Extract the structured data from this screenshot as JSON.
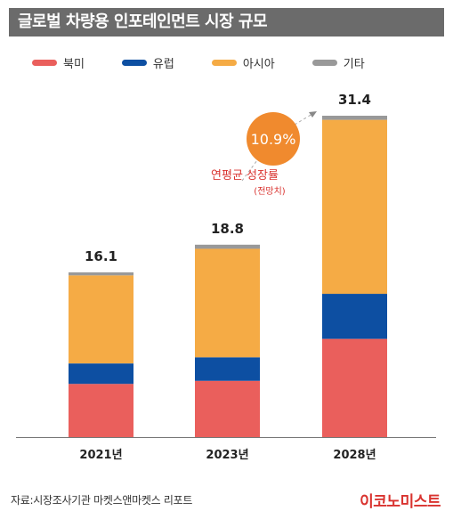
{
  "title": "글로벌 차량용 인포테인먼트 시장 규모",
  "legend": [
    {
      "label": "북미",
      "color": "#ea5f5c"
    },
    {
      "label": "유럽",
      "color": "#0d4fa2"
    },
    {
      "label": "아시아",
      "color": "#f5ab45"
    },
    {
      "label": "기타",
      "color": "#999999"
    }
  ],
  "chart_data": {
    "type": "bar",
    "stacked": true,
    "categories": [
      "2021년",
      "2023년",
      "2028년"
    ],
    "totals": [
      "16.1",
      "18.8",
      "31.4"
    ],
    "series": [
      {
        "name": "북미",
        "values": [
          5.2,
          5.5,
          9.6
        ],
        "color": "#ea5f5c"
      },
      {
        "name": "유럽",
        "values": [
          2.0,
          2.3,
          4.4
        ],
        "color": "#0d4fa2"
      },
      {
        "name": "아시아",
        "values": [
          8.6,
          10.6,
          17.0
        ],
        "color": "#f5ab45"
      },
      {
        "name": "기타",
        "values": [
          0.3,
          0.4,
          0.4
        ],
        "color": "#999999"
      }
    ],
    "ylim": [
      0,
      31.4
    ],
    "annotation": {
      "value": "10.9%",
      "label": "연평균 성장률",
      "sublabel": "(전망치)",
      "color": "#f08a2e",
      "label_color": "#d9332f"
    }
  },
  "footer": {
    "source": "자료:시장조사기관 마켓스앤마켓스 리포트",
    "brand": "이코노미스트"
  }
}
